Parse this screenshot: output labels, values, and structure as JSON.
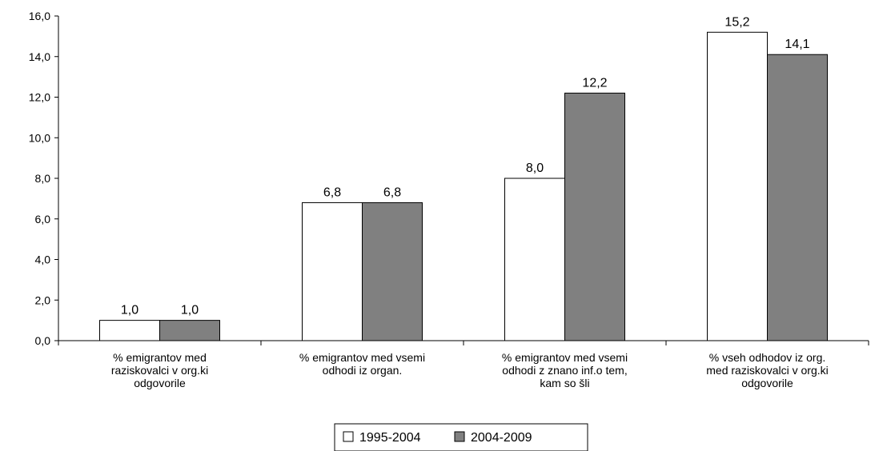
{
  "chart_data": {
    "type": "bar",
    "categories": [
      [
        "% emigrantov med",
        "raziskovalci v org.ki",
        "odgovorile"
      ],
      [
        "% emigrantov med vsemi",
        "odhodi iz organ."
      ],
      [
        "% emigrantov med vsemi",
        "odhodi z znano inf.o tem,",
        "kam so šli"
      ],
      [
        "% vseh odhodov iz org.",
        "med raziskovalci v org.ki",
        "odgovorile"
      ]
    ],
    "series": [
      {
        "name": "1995-2004",
        "color": "#ffffff",
        "values": [
          1.0,
          6.8,
          8.0,
          15.2
        ],
        "labels": [
          "1,0",
          "6,8",
          "8,0",
          "15,2"
        ]
      },
      {
        "name": "2004-2009",
        "color": "#808080",
        "values": [
          1.0,
          6.8,
          12.2,
          14.1
        ],
        "labels": [
          "1,0",
          "6,8",
          "12,2",
          "14,1"
        ]
      }
    ],
    "y_ticks": [
      "0,0",
      "2,0",
      "4,0",
      "6,0",
      "8,0",
      "10,0",
      "12,0",
      "14,0",
      "16,0"
    ],
    "ylim": [
      0,
      16
    ],
    "grid": false,
    "legend_position": "bottom-center"
  }
}
